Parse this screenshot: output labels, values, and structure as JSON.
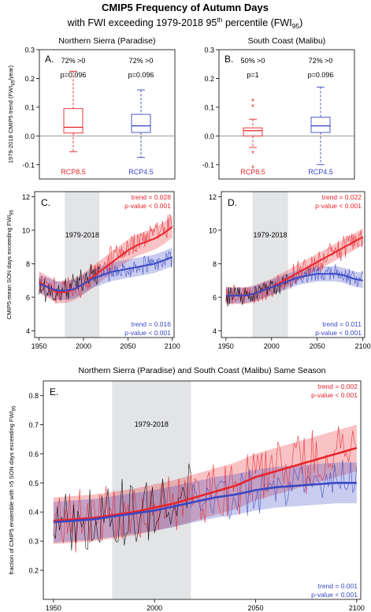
{
  "figure": {
    "title_line1": "CMIP5 Frequency of Autumn Days",
    "title_line2_prefix": "with FWI exceeding 1979-2018 95",
    "title_line2_sup": "th",
    "title_line2_mid": " percentile (FWI",
    "title_line2_sub": "95",
    "title_line2_suffix": ")"
  },
  "colors": {
    "rcp85": "#e8252b",
    "rcp45": "#3a48c4",
    "obs": "#000000",
    "shade": "#e3e4e6",
    "axis": "#000000"
  },
  "chart_data": [
    {
      "id": "A",
      "type": "box",
      "panel_label": "A.",
      "title": "Northern Sierra (Paradise)",
      "ylabel_main": "1979-2018 CMIP5 trend (FWI",
      "ylabel_sub": "95",
      "ylabel_tail": "/year)",
      "ylim": [
        -0.15,
        0.3
      ],
      "yticks": [
        -0.1,
        0.0,
        0.1,
        0.2,
        0.3
      ],
      "zero_line": true,
      "boxes": [
        {
          "name": "RCP8.5",
          "q1": 0.01,
          "median": 0.03,
          "q3": 0.095,
          "whisker_low": -0.055,
          "whisker_high": 0.225,
          "outliers": [],
          "pct_label": "72% >0",
          "p_label": "p=0.096"
        },
        {
          "name": "RCP4.5",
          "q1": 0.012,
          "median": 0.035,
          "q3": 0.075,
          "whisker_low": -0.075,
          "whisker_high": 0.16,
          "outliers": [],
          "pct_label": "72% >0",
          "p_label": "p=0.096"
        }
      ]
    },
    {
      "id": "B",
      "type": "box",
      "panel_label": "B.",
      "title": "South Coast (Malibu)",
      "ylim": [
        -0.15,
        0.3
      ],
      "yticks": [
        -0.1,
        0.0,
        0.1,
        0.2,
        0.3
      ],
      "zero_line": true,
      "boxes": [
        {
          "name": "RCP8.5",
          "q1": 0.0,
          "median": 0.018,
          "q3": 0.028,
          "whisker_low": -0.04,
          "whisker_high": 0.058,
          "outliers": [
            0.122,
            0.103,
            -0.06,
            -0.11
          ],
          "pct_label": "50% >0",
          "p_label": "p=1"
        },
        {
          "name": "RCP4.5",
          "q1": 0.012,
          "median": 0.035,
          "q3": 0.065,
          "whisker_low": -0.1,
          "whisker_high": 0.17,
          "outliers": [],
          "pct_label": "72% >0",
          "p_label": "p=0.096"
        }
      ]
    },
    {
      "id": "C",
      "type": "line",
      "panel_label": "C.",
      "ylabel": "CMIP5 mean SON days exceeding FWI",
      "ylabel_sub": "95",
      "xlim": [
        1945,
        2102
      ],
      "ylim": [
        3.6,
        12.3
      ],
      "xticks": [
        1950,
        2000,
        2050,
        2100
      ],
      "yticks": [
        4,
        6,
        8,
        10,
        12
      ],
      "shaded_period": [
        1979,
        2018
      ],
      "shaded_label": "1979-2018",
      "trend_85": "trend = 0.028",
      "pval_85": "p-value < 0.001",
      "trend_45": "trend = 0.016",
      "pval_45": "p-value < 0.001",
      "series": [
        {
          "name": "RCP8.5",
          "smooth": [
            [
              1950,
              6.9
            ],
            [
              1960,
              6.6
            ],
            [
              1970,
              6.3
            ],
            [
              1980,
              6.3
            ],
            [
              1990,
              6.5
            ],
            [
              2000,
              6.8
            ],
            [
              2010,
              7.2
            ],
            [
              2020,
              7.6
            ],
            [
              2030,
              8.0
            ],
            [
              2040,
              8.4
            ],
            [
              2050,
              8.8
            ],
            [
              2060,
              9.1
            ],
            [
              2070,
              9.3
            ],
            [
              2080,
              9.5
            ],
            [
              2090,
              9.8
            ],
            [
              2100,
              10.2
            ]
          ],
          "band": 0.65
        },
        {
          "name": "RCP4.5",
          "smooth": [
            [
              1950,
              6.8
            ],
            [
              1960,
              6.6
            ],
            [
              1970,
              6.4
            ],
            [
              1980,
              6.4
            ],
            [
              1990,
              6.5
            ],
            [
              2000,
              6.8
            ],
            [
              2010,
              7.1
            ],
            [
              2020,
              7.3
            ],
            [
              2030,
              7.5
            ],
            [
              2040,
              7.6
            ],
            [
              2050,
              7.7
            ],
            [
              2060,
              7.8
            ],
            [
              2070,
              7.9
            ],
            [
              2080,
              8.0
            ],
            [
              2090,
              8.2
            ],
            [
              2100,
              8.4
            ]
          ],
          "band": 0.55
        }
      ],
      "obs_range": [
        1950,
        2018
      ],
      "anchors_85": [
        [
          1950,
          6.8
        ],
        [
          1960,
          6.6
        ],
        [
          1970,
          6.4
        ],
        [
          1980,
          6.4
        ],
        [
          1990,
          6.6
        ],
        [
          2000,
          6.9
        ],
        [
          2010,
          7.3
        ],
        [
          2020,
          7.7
        ],
        [
          2030,
          8.2
        ],
        [
          2040,
          8.6
        ],
        [
          2050,
          9.0
        ],
        [
          2060,
          9.3
        ],
        [
          2070,
          9.6
        ],
        [
          2080,
          9.8
        ],
        [
          2090,
          10.2
        ],
        [
          2100,
          10.4
        ]
      ],
      "anchors_45": [
        [
          2020,
          7.4
        ],
        [
          2030,
          7.4
        ],
        [
          2040,
          7.6
        ],
        [
          2050,
          7.7
        ],
        [
          2060,
          7.8
        ],
        [
          2070,
          8.0
        ],
        [
          2080,
          8.0
        ],
        [
          2090,
          8.2
        ],
        [
          2100,
          8.3
        ]
      ],
      "anchors_obs": [
        [
          1950,
          6.5
        ],
        [
          1960,
          6.4
        ],
        [
          1970,
          6.2
        ],
        [
          1980,
          6.5
        ],
        [
          1990,
          6.6
        ],
        [
          2000,
          6.9
        ],
        [
          2010,
          7.3
        ],
        [
          2018,
          7.3
        ]
      ],
      "noise": {
        "obs": 0.9,
        "r85": 0.9,
        "r45": 0.6
      }
    },
    {
      "id": "D",
      "type": "line",
      "panel_label": "D.",
      "xlim": [
        1945,
        2102
      ],
      "ylim": [
        3.6,
        12.3
      ],
      "xticks": [
        1950,
        2000,
        2050,
        2100
      ],
      "yticks": [
        4,
        6,
        8,
        10,
        12
      ],
      "shaded_period": [
        1979,
        2018
      ],
      "shaded_label": "1979-2018",
      "trend_85": "trend = 0.022",
      "pval_85": "p-value < 0.001",
      "trend_45": "trend = 0.011",
      "pval_45": "p-value < 0.001",
      "series": [
        {
          "name": "RCP8.5",
          "smooth": [
            [
              1950,
              6.1
            ],
            [
              1960,
              6.1
            ],
            [
              1970,
              6.1
            ],
            [
              1980,
              6.2
            ],
            [
              1990,
              6.4
            ],
            [
              2000,
              6.6
            ],
            [
              2010,
              6.9
            ],
            [
              2020,
              7.2
            ],
            [
              2030,
              7.5
            ],
            [
              2040,
              7.8
            ],
            [
              2050,
              8.1
            ],
            [
              2060,
              8.4
            ],
            [
              2070,
              8.7
            ],
            [
              2080,
              9.0
            ],
            [
              2090,
              9.3
            ],
            [
              2100,
              9.6
            ]
          ],
          "band": 0.5
        },
        {
          "name": "RCP4.5",
          "smooth": [
            [
              1950,
              6.1
            ],
            [
              1960,
              6.1
            ],
            [
              1970,
              6.1
            ],
            [
              1980,
              6.2
            ],
            [
              1990,
              6.4
            ],
            [
              2000,
              6.6
            ],
            [
              2010,
              6.8
            ],
            [
              2020,
              7.0
            ],
            [
              2030,
              7.2
            ],
            [
              2040,
              7.3
            ],
            [
              2050,
              7.4
            ],
            [
              2060,
              7.4
            ],
            [
              2070,
              7.4
            ],
            [
              2080,
              7.3
            ],
            [
              2090,
              7.1
            ],
            [
              2100,
              7.0
            ]
          ],
          "band": 0.45
        }
      ],
      "obs_range": [
        1950,
        2018
      ],
      "anchors_85": [
        [
          1950,
          6.1
        ],
        [
          1960,
          6.1
        ],
        [
          1970,
          6.1
        ],
        [
          1980,
          6.2
        ],
        [
          1990,
          6.4
        ],
        [
          2000,
          6.6
        ],
        [
          2010,
          6.9
        ],
        [
          2020,
          7.2
        ],
        [
          2030,
          7.5
        ],
        [
          2040,
          7.8
        ],
        [
          2050,
          8.1
        ],
        [
          2060,
          8.4
        ],
        [
          2070,
          8.7
        ],
        [
          2080,
          9.0
        ],
        [
          2090,
          9.3
        ],
        [
          2100,
          9.6
        ]
      ],
      "anchors_45": [
        [
          2020,
          7.0
        ],
        [
          2030,
          7.2
        ],
        [
          2040,
          7.3
        ],
        [
          2050,
          7.4
        ],
        [
          2060,
          7.4
        ],
        [
          2070,
          7.4
        ],
        [
          2080,
          7.3
        ],
        [
          2090,
          7.1
        ],
        [
          2100,
          7.0
        ]
      ],
      "anchors_obs": [
        [
          1950,
          6.0
        ],
        [
          1960,
          6.1
        ],
        [
          1970,
          6.0
        ],
        [
          1980,
          6.2
        ],
        [
          1990,
          6.3
        ],
        [
          2000,
          6.5
        ],
        [
          2010,
          6.8
        ],
        [
          2018,
          6.9
        ]
      ],
      "noise": {
        "obs": 0.7,
        "r85": 0.8,
        "r45": 0.6
      }
    },
    {
      "id": "E",
      "type": "line",
      "panel_label": "E.",
      "title": "Northern Sierra (Paradise) and South Coast (Malibu) Same Season",
      "ylabel": "fraction of CMIP5 ensemble with >5 SON days exceeding FWI",
      "ylabel_sub": "95",
      "xlim": [
        1945,
        2102
      ],
      "ylim": [
        0.1,
        0.85
      ],
      "xticks": [
        1950,
        2000,
        2050,
        2100
      ],
      "yticks": [
        0.2,
        0.3,
        0.4,
        0.5,
        0.6,
        0.7,
        0.8
      ],
      "shaded_period": [
        1979,
        2018
      ],
      "shaded_label": "1979-2018",
      "trend_85": "trend = 0.002",
      "pval_85": "p-value < 0.001",
      "trend_45": "trend = 0.001",
      "pval_45": "p-value < 0.001",
      "series": [
        {
          "name": "RCP8.5",
          "smooth": [
            [
              1950,
              0.37
            ],
            [
              1960,
              0.375
            ],
            [
              1970,
              0.38
            ],
            [
              1980,
              0.39
            ],
            [
              1990,
              0.4
            ],
            [
              2000,
              0.415
            ],
            [
              2010,
              0.43
            ],
            [
              2020,
              0.45
            ],
            [
              2030,
              0.47
            ],
            [
              2040,
              0.49
            ],
            [
              2050,
              0.52
            ],
            [
              2060,
              0.54
            ],
            [
              2070,
              0.56
            ],
            [
              2080,
              0.58
            ],
            [
              2090,
              0.6
            ],
            [
              2100,
              0.62
            ]
          ],
          "band": 0.08
        },
        {
          "name": "RCP4.5",
          "smooth": [
            [
              1950,
              0.365
            ],
            [
              1960,
              0.37
            ],
            [
              1970,
              0.375
            ],
            [
              1980,
              0.385
            ],
            [
              1990,
              0.395
            ],
            [
              2000,
              0.405
            ],
            [
              2010,
              0.42
            ],
            [
              2020,
              0.435
            ],
            [
              2030,
              0.45
            ],
            [
              2040,
              0.46
            ],
            [
              2050,
              0.475
            ],
            [
              2060,
              0.485
            ],
            [
              2070,
              0.49
            ],
            [
              2080,
              0.495
            ],
            [
              2090,
              0.5
            ],
            [
              2100,
              0.5
            ]
          ],
          "band": 0.07
        }
      ],
      "obs_range": [
        1950,
        2018
      ],
      "anchors_85": [
        [
          1950,
          0.37
        ],
        [
          1970,
          0.38
        ],
        [
          1990,
          0.4
        ],
        [
          2010,
          0.43
        ],
        [
          2030,
          0.47
        ],
        [
          2050,
          0.52
        ],
        [
          2070,
          0.56
        ],
        [
          2090,
          0.6
        ],
        [
          2100,
          0.62
        ]
      ],
      "anchors_45": [
        [
          2018,
          0.44
        ],
        [
          2030,
          0.45
        ],
        [
          2050,
          0.475
        ],
        [
          2070,
          0.49
        ],
        [
          2090,
          0.5
        ],
        [
          2100,
          0.5
        ]
      ],
      "anchors_obs": [
        [
          1950,
          0.38
        ],
        [
          1970,
          0.37
        ],
        [
          1990,
          0.4
        ],
        [
          2010,
          0.43
        ],
        [
          2018,
          0.44
        ]
      ],
      "noise": {
        "obs": 0.14,
        "r85": 0.12,
        "r45": 0.09
      }
    }
  ]
}
